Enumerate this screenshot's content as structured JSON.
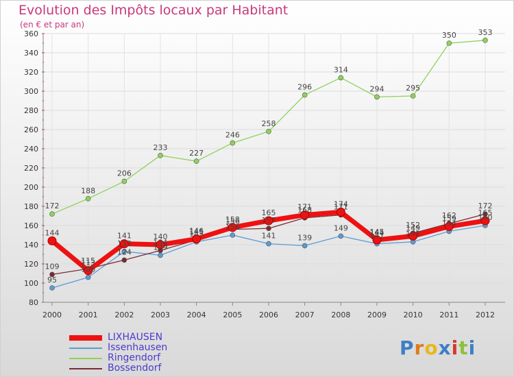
{
  "chart_data": {
    "type": "line",
    "title": "Evolution des Impôts locaux par Habitant",
    "subtitle": "(en € et par an)",
    "x": [
      "2000",
      "2001",
      "2002",
      "2003",
      "2004",
      "2005",
      "2006",
      "2007",
      "2008",
      "2009",
      "2010",
      "2011",
      "2012"
    ],
    "ylim": [
      80,
      360
    ],
    "yticks": [
      "80",
      "100",
      "120",
      "140",
      "160",
      "180",
      "200",
      "220",
      "240",
      "260",
      "280",
      "300",
      "320",
      "340",
      "360"
    ],
    "grid": true,
    "legend_position": "bottom-left",
    "series": [
      {
        "name": "LIXHAUSEN",
        "color": "#ee1111",
        "values": [
          144,
          113,
          141,
          140,
          146,
          158,
          165,
          171,
          174,
          145,
          149,
          159,
          165
        ]
      },
      {
        "name": "Issenhausen",
        "color": "#5b9bd5",
        "values": [
          95,
          106,
          133,
          129,
          143,
          150,
          141,
          139,
          149,
          141,
          143,
          154,
          160
        ]
      },
      {
        "name": "Ringendorf",
        "color": "#8fd15a",
        "values": [
          172,
          188,
          206,
          233,
          227,
          246,
          258,
          296,
          314,
          294,
          295,
          350,
          353
        ]
      },
      {
        "name": "Bossendorf",
        "color": "#7a2a34",
        "values": [
          109,
          115,
          124,
          134,
          145,
          156,
          157,
          168,
          171,
          144,
          152,
          162,
          172
        ]
      }
    ]
  },
  "brand": {
    "name": "Proxiti",
    "letters": [
      "P",
      "r",
      "o",
      "x",
      "i",
      "t",
      "i"
    ],
    "colors": [
      "#3e7fc4",
      "#e07a1a",
      "#e8b81a",
      "#3e7fc4",
      "#d43a2a",
      "#8cc13f",
      "#3e7fc4"
    ]
  }
}
